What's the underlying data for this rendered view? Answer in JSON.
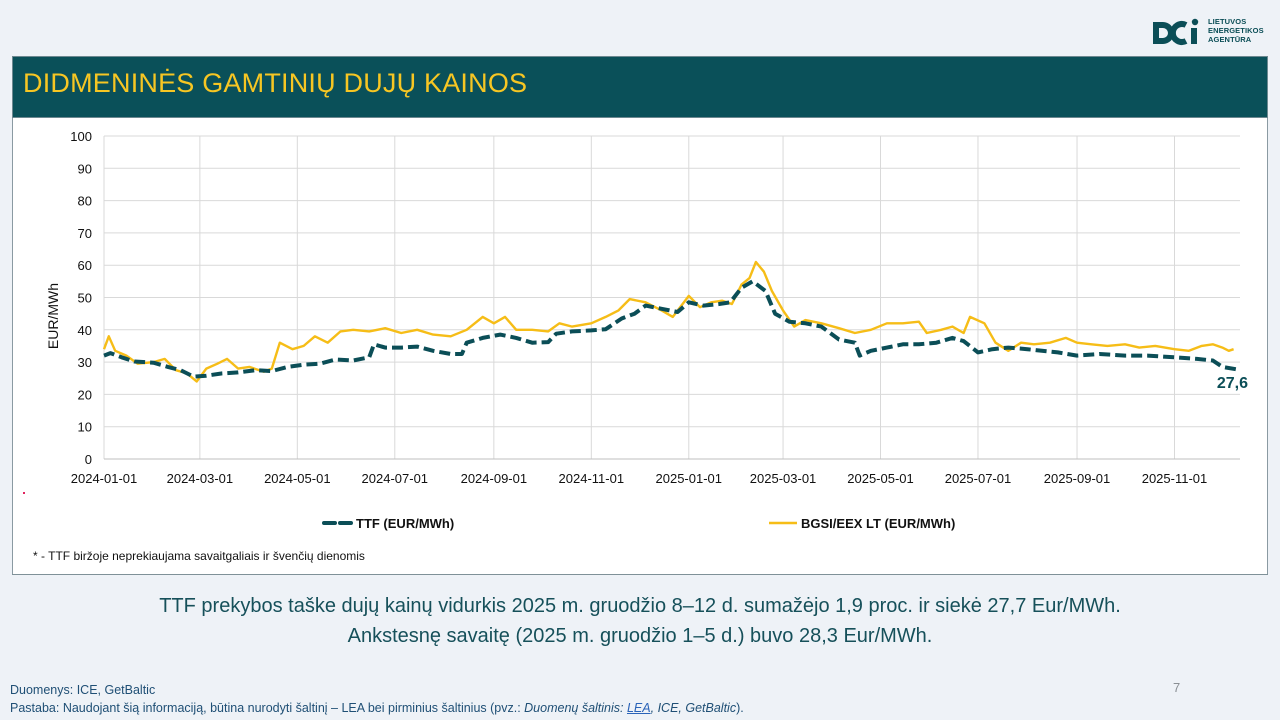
{
  "org": {
    "line1": "LIETUVOS",
    "line2": "ENERGETIKOS",
    "line3": "AGENTŪRA"
  },
  "header": {
    "title": "DIDMENINĖS GAMTINIŲ DUJŲ KAINOS"
  },
  "colors": {
    "ttf": "#0b4e57",
    "bgsi": "#f6bd17",
    "title_bg": "#0a5059",
    "title_text": "#f7c623"
  },
  "chart_data": {
    "type": "line",
    "title": "",
    "xlabel": "",
    "ylabel": "EUR/MWh",
    "ylim": [
      0,
      100
    ],
    "yticks": [
      0,
      10,
      20,
      30,
      40,
      50,
      60,
      70,
      80,
      90,
      100
    ],
    "xlim": [
      "2024-01-01",
      "2025-12-12"
    ],
    "xticks": [
      "2024-01-01",
      "2024-03-01",
      "2024-05-01",
      "2024-07-01",
      "2024-09-01",
      "2024-11-01",
      "2025-01-01",
      "2025-03-01",
      "2025-05-01",
      "2025-07-01",
      "2025-09-01",
      "2025-11-01"
    ],
    "grid": true,
    "legend": "bottom",
    "end_label": "27,6",
    "series": [
      {
        "name": "TTF (EUR/MWh)",
        "style": "dashed",
        "points": [
          [
            "2024-01-01",
            32
          ],
          [
            "2024-01-05",
            32.8
          ],
          [
            "2024-01-12",
            31.5
          ],
          [
            "2024-01-20",
            30.2
          ],
          [
            "2024-02-01",
            29.8
          ],
          [
            "2024-02-10",
            28.5
          ],
          [
            "2024-02-18",
            27.5
          ],
          [
            "2024-02-26",
            25.5
          ],
          [
            "2024-03-05",
            25.8
          ],
          [
            "2024-03-15",
            26.5
          ],
          [
            "2024-03-25",
            26.8
          ],
          [
            "2024-04-05",
            27.5
          ],
          [
            "2024-04-15",
            27.2
          ],
          [
            "2024-04-25",
            28.5
          ],
          [
            "2024-05-05",
            29.2
          ],
          [
            "2024-05-15",
            29.5
          ],
          [
            "2024-05-25",
            30.8
          ],
          [
            "2024-06-05",
            30.5
          ],
          [
            "2024-06-15",
            31.5
          ],
          [
            "2024-06-18",
            35.5
          ],
          [
            "2024-06-25",
            34.5
          ],
          [
            "2024-07-05",
            34.5
          ],
          [
            "2024-07-15",
            34.8
          ],
          [
            "2024-07-25",
            33.5
          ],
          [
            "2024-08-05",
            32.5
          ],
          [
            "2024-08-12",
            32.5
          ],
          [
            "2024-08-15",
            36
          ],
          [
            "2024-08-25",
            37.5
          ],
          [
            "2024-09-05",
            38.5
          ],
          [
            "2024-09-15",
            37.5
          ],
          [
            "2024-09-25",
            36
          ],
          [
            "2024-10-05",
            36.2
          ],
          [
            "2024-10-10",
            38.8
          ],
          [
            "2024-10-20",
            39.5
          ],
          [
            "2024-11-01",
            39.8
          ],
          [
            "2024-11-10",
            40.2
          ],
          [
            "2024-11-20",
            43.5
          ],
          [
            "2024-11-28",
            45
          ],
          [
            "2024-12-05",
            47.5
          ],
          [
            "2024-12-15",
            46.5
          ],
          [
            "2024-12-25",
            45.5
          ],
          [
            "2025-01-01",
            48.5
          ],
          [
            "2025-01-10",
            47.5
          ],
          [
            "2025-01-20",
            48
          ],
          [
            "2025-01-27",
            48.5
          ],
          [
            "2025-02-03",
            53
          ],
          [
            "2025-02-10",
            55
          ],
          [
            "2025-02-18",
            52
          ],
          [
            "2025-02-24",
            45
          ],
          [
            "2025-03-05",
            42.5
          ],
          [
            "2025-03-15",
            42
          ],
          [
            "2025-03-25",
            41
          ],
          [
            "2025-04-05",
            37
          ],
          [
            "2025-04-15",
            36
          ],
          [
            "2025-04-18",
            32
          ],
          [
            "2025-04-25",
            33.5
          ],
          [
            "2025-05-05",
            34.5
          ],
          [
            "2025-05-15",
            35.5
          ],
          [
            "2025-05-25",
            35.5
          ],
          [
            "2025-06-05",
            36
          ],
          [
            "2025-06-15",
            37.5
          ],
          [
            "2025-06-22",
            36.5
          ],
          [
            "2025-07-01",
            33
          ],
          [
            "2025-07-10",
            34
          ],
          [
            "2025-07-20",
            34.5
          ],
          [
            "2025-08-01",
            34
          ],
          [
            "2025-08-10",
            33.5
          ],
          [
            "2025-08-20",
            33
          ],
          [
            "2025-09-01",
            32
          ],
          [
            "2025-09-15",
            32.5
          ],
          [
            "2025-10-01",
            32
          ],
          [
            "2025-10-15",
            32
          ],
          [
            "2025-11-01",
            31.5
          ],
          [
            "2025-11-15",
            31
          ],
          [
            "2025-11-25",
            30.5
          ],
          [
            "2025-12-01",
            28.5
          ],
          [
            "2025-12-12",
            27.6
          ]
        ]
      },
      {
        "name": "BGSI/EEX LT (EUR/MWh)",
        "style": "solid",
        "points": [
          [
            "2024-01-01",
            34
          ],
          [
            "2024-01-04",
            38
          ],
          [
            "2024-01-08",
            33.5
          ],
          [
            "2024-01-15",
            32
          ],
          [
            "2024-01-22",
            29.5
          ],
          [
            "2024-02-01",
            30
          ],
          [
            "2024-02-08",
            31
          ],
          [
            "2024-02-15",
            27.5
          ],
          [
            "2024-02-22",
            26.5
          ],
          [
            "2024-02-28",
            24
          ],
          [
            "2024-03-05",
            28
          ],
          [
            "2024-03-12",
            29.5
          ],
          [
            "2024-03-18",
            31
          ],
          [
            "2024-03-25",
            28
          ],
          [
            "2024-04-01",
            28.5
          ],
          [
            "2024-04-10",
            27
          ],
          [
            "2024-04-15",
            28
          ],
          [
            "2024-04-20",
            36
          ],
          [
            "2024-04-28",
            34
          ],
          [
            "2024-05-05",
            35
          ],
          [
            "2024-05-12",
            38
          ],
          [
            "2024-05-20",
            36
          ],
          [
            "2024-05-28",
            39.5
          ],
          [
            "2024-06-05",
            40
          ],
          [
            "2024-06-15",
            39.5
          ],
          [
            "2024-06-25",
            40.5
          ],
          [
            "2024-07-05",
            39
          ],
          [
            "2024-07-15",
            40
          ],
          [
            "2024-07-25",
            38.5
          ],
          [
            "2024-08-05",
            38
          ],
          [
            "2024-08-15",
            40
          ],
          [
            "2024-08-25",
            44
          ],
          [
            "2024-09-01",
            42
          ],
          [
            "2024-09-08",
            44
          ],
          [
            "2024-09-15",
            40
          ],
          [
            "2024-09-25",
            40
          ],
          [
            "2024-10-05",
            39.5
          ],
          [
            "2024-10-12",
            42
          ],
          [
            "2024-10-20",
            41
          ],
          [
            "2024-11-01",
            42
          ],
          [
            "2024-11-10",
            44
          ],
          [
            "2024-11-18",
            46
          ],
          [
            "2024-11-25",
            49.5
          ],
          [
            "2024-12-05",
            48.5
          ],
          [
            "2024-12-15",
            46
          ],
          [
            "2024-12-22",
            44
          ],
          [
            "2025-01-01",
            50.5
          ],
          [
            "2025-01-08",
            47
          ],
          [
            "2025-01-15",
            48.5
          ],
          [
            "2025-01-22",
            49
          ],
          [
            "2025-01-28",
            48
          ],
          [
            "2025-02-03",
            54
          ],
          [
            "2025-02-08",
            56
          ],
          [
            "2025-02-12",
            61
          ],
          [
            "2025-02-17",
            58
          ],
          [
            "2025-02-22",
            52
          ],
          [
            "2025-03-01",
            46
          ],
          [
            "2025-03-08",
            41
          ],
          [
            "2025-03-15",
            43
          ],
          [
            "2025-03-25",
            42
          ],
          [
            "2025-04-05",
            40.5
          ],
          [
            "2025-04-15",
            39
          ],
          [
            "2025-04-25",
            40
          ],
          [
            "2025-05-05",
            42
          ],
          [
            "2025-05-15",
            42
          ],
          [
            "2025-05-25",
            42.5
          ],
          [
            "2025-05-30",
            39
          ],
          [
            "2025-06-08",
            40
          ],
          [
            "2025-06-15",
            41
          ],
          [
            "2025-06-22",
            39
          ],
          [
            "2025-06-26",
            44
          ],
          [
            "2025-07-05",
            42
          ],
          [
            "2025-07-12",
            36
          ],
          [
            "2025-07-20",
            33.5
          ],
          [
            "2025-07-28",
            36
          ],
          [
            "2025-08-05",
            35.5
          ],
          [
            "2025-08-15",
            36
          ],
          [
            "2025-08-25",
            37.5
          ],
          [
            "2025-09-01",
            36
          ],
          [
            "2025-09-10",
            35.5
          ],
          [
            "2025-09-20",
            35
          ],
          [
            "2025-10-01",
            35.5
          ],
          [
            "2025-10-10",
            34.5
          ],
          [
            "2025-10-20",
            35
          ],
          [
            "2025-11-01",
            34
          ],
          [
            "2025-11-10",
            33.5
          ],
          [
            "2025-11-18",
            35
          ],
          [
            "2025-11-25",
            35.5
          ],
          [
            "2025-12-01",
            34.5
          ],
          [
            "2025-12-05",
            33.5
          ],
          [
            "2025-12-08",
            34
          ]
        ]
      }
    ]
  },
  "footnote": "* - TTF biržoje neprekiaujama savaitgaliais ir švenčių dienomis",
  "summary": {
    "line1": "TTF prekybos taške dujų kainų vidurkis 2025 m. gruodžio 8–12 d. sumažėjo 1,9 proc. ir siekė 27,7 Eur/MWh.",
    "line2": "Ankstesnę savaitę (2025 m. gruodžio 1–5 d.) buvo 28,3 Eur/MWh."
  },
  "footer": {
    "source": "Duomenys: ICE, GetBaltic",
    "note_prefix": "Pastaba: Naudojant šią informaciją, būtina nurodyti šaltinį – LEA bei pirminius šaltinius (pvz.: ",
    "note_italic": "Duomenų šaltinis: ",
    "note_link": "LEA",
    "note_italic_rest": ", ICE, GetBaltic",
    "note_suffix": ")."
  },
  "page_number": "7"
}
